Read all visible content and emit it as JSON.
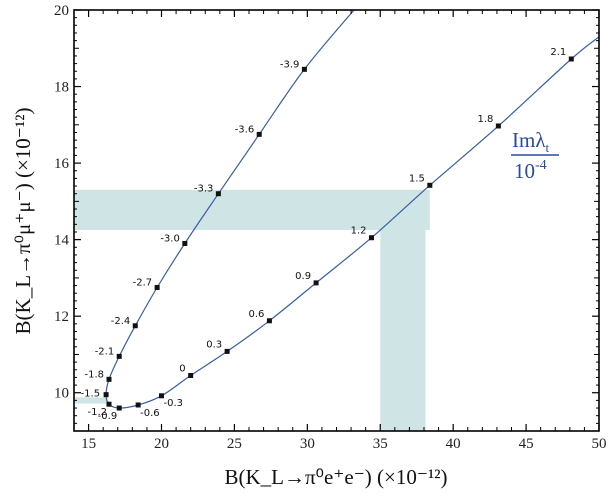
{
  "chart_data": {
    "type": "line",
    "xlabel": "B(K_L→π⁰e⁺e⁻)  (×10⁻¹²)",
    "ylabel": "B(K_L→π⁰μ⁺μ⁻)  (×10⁻¹²)",
    "xlim": [
      14,
      50
    ],
    "ylim": [
      9,
      20
    ],
    "x_ticks": [
      "15",
      "20",
      "25",
      "30",
      "35",
      "40",
      "45",
      "50"
    ],
    "y_ticks": [
      "10",
      "12",
      "14",
      "16",
      "18",
      "20"
    ],
    "grid": false,
    "annotation": {
      "numerator": "Imλ",
      "numerator_sub": "t",
      "denominator": "10",
      "denominator_exp": "-4"
    },
    "colors": {
      "curve": "#3a5ca8",
      "band": "#cfe5e5",
      "annotation": "#2b4b9b"
    },
    "bands": [
      {
        "axis": "y",
        "from": 14.25,
        "to": 15.3
      },
      {
        "axis": "x",
        "from": 35.0,
        "to": 38.1
      },
      {
        "axis": "y",
        "from": 9.72,
        "to": 9.88
      }
    ],
    "series": [
      {
        "points": [
          {
            "label": "-3.9",
            "x": 29.8,
            "y": 18.45
          },
          {
            "label": "-3.6",
            "x": 26.7,
            "y": 16.75
          },
          {
            "label": "-3.3",
            "x": 23.9,
            "y": 15.2
          },
          {
            "label": "-3.0",
            "x": 21.6,
            "y": 13.9
          },
          {
            "label": "-2.7",
            "x": 19.7,
            "y": 12.75
          },
          {
            "label": "-2.4",
            "x": 18.2,
            "y": 11.75
          },
          {
            "label": "-2.1",
            "x": 17.1,
            "y": 10.95
          },
          {
            "label": "-1.8",
            "x": 16.4,
            "y": 10.35
          },
          {
            "label": "-1.5",
            "x": 16.2,
            "y": 9.95
          },
          {
            "label": "-1.2",
            "x": 16.4,
            "y": 9.7
          },
          {
            "label": "-0.9",
            "x": 17.1,
            "y": 9.6
          },
          {
            "label": "-0.6",
            "x": 18.4,
            "y": 9.68
          },
          {
            "label": "-0.3",
            "x": 20.0,
            "y": 9.92
          },
          {
            "label": "0",
            "x": 22.0,
            "y": 10.45
          },
          {
            "label": "0.3",
            "x": 24.5,
            "y": 11.08
          },
          {
            "label": "0.6",
            "x": 27.4,
            "y": 11.88
          },
          {
            "label": "0.9",
            "x": 30.6,
            "y": 12.87
          },
          {
            "label": "1.2",
            "x": 34.4,
            "y": 14.05
          },
          {
            "label": "1.5",
            "x": 38.4,
            "y": 15.42
          },
          {
            "label": "1.8",
            "x": 43.1,
            "y": 16.97
          },
          {
            "label": "2.1",
            "x": 48.1,
            "y": 18.72
          }
        ]
      }
    ]
  }
}
